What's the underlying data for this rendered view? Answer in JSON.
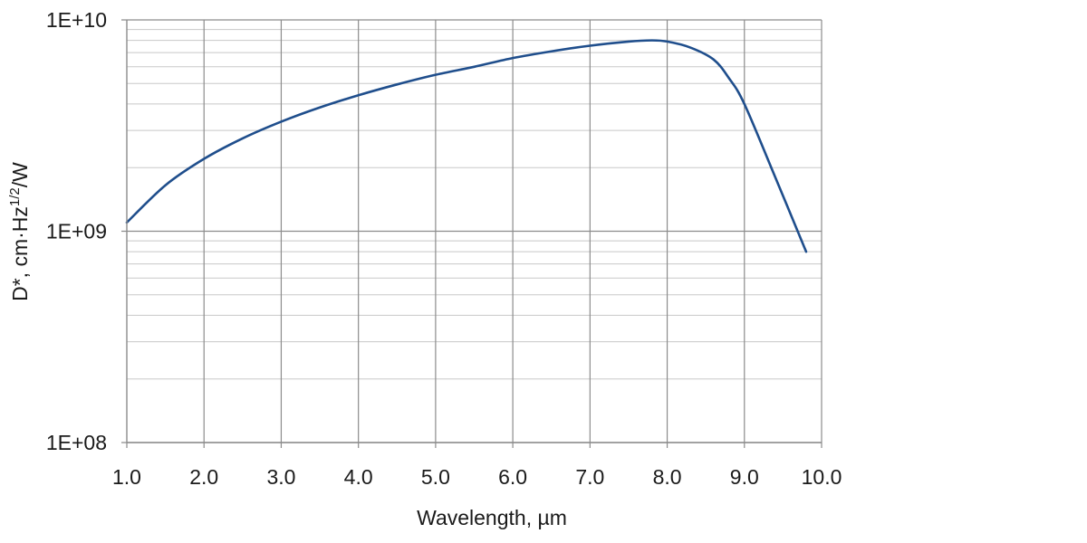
{
  "chart_data": {
    "type": "line",
    "xlabel": "Wavelength, µm",
    "ylabel": {
      "prefix": "D*, cm·Hz",
      "superscript": "1/2",
      "suffix": "/W"
    },
    "xlim": [
      1.0,
      10.0
    ],
    "ylim": [
      100000000,
      10000000000
    ],
    "y_scale": "log",
    "grid": true,
    "x_ticks": [
      {
        "value": 1.0,
        "label": "1.0"
      },
      {
        "value": 2.0,
        "label": "2.0"
      },
      {
        "value": 3.0,
        "label": "3.0"
      },
      {
        "value": 4.0,
        "label": "4.0"
      },
      {
        "value": 5.0,
        "label": "5.0"
      },
      {
        "value": 6.0,
        "label": "6.0"
      },
      {
        "value": 7.0,
        "label": "7.0"
      },
      {
        "value": 8.0,
        "label": "8.0"
      },
      {
        "value": 9.0,
        "label": "9.0"
      },
      {
        "value": 10.0,
        "label": "10.0"
      }
    ],
    "y_ticks": [
      {
        "value": 100000000,
        "label": "1E+08"
      },
      {
        "value": 1000000000,
        "label": "1E+09"
      },
      {
        "value": 10000000000,
        "label": "1E+10"
      }
    ],
    "series": [
      {
        "color": "#1f4e8c",
        "x": [
          1.0,
          1.5,
          2.0,
          2.5,
          3.0,
          3.5,
          4.0,
          4.5,
          5.0,
          5.5,
          6.0,
          6.5,
          7.0,
          7.5,
          7.8,
          8.0,
          8.3,
          8.6,
          8.8,
          9.0,
          9.4,
          9.8
        ],
        "y": [
          1100000000,
          1650000000,
          2200000000,
          2750000000,
          3300000000,
          3850000000,
          4400000000,
          4950000000,
          5500000000,
          6000000000,
          6600000000,
          7100000000,
          7550000000,
          7900000000,
          8000000000,
          7900000000,
          7400000000,
          6500000000,
          5300000000,
          4000000000,
          1800000000,
          800000000
        ]
      }
    ]
  }
}
